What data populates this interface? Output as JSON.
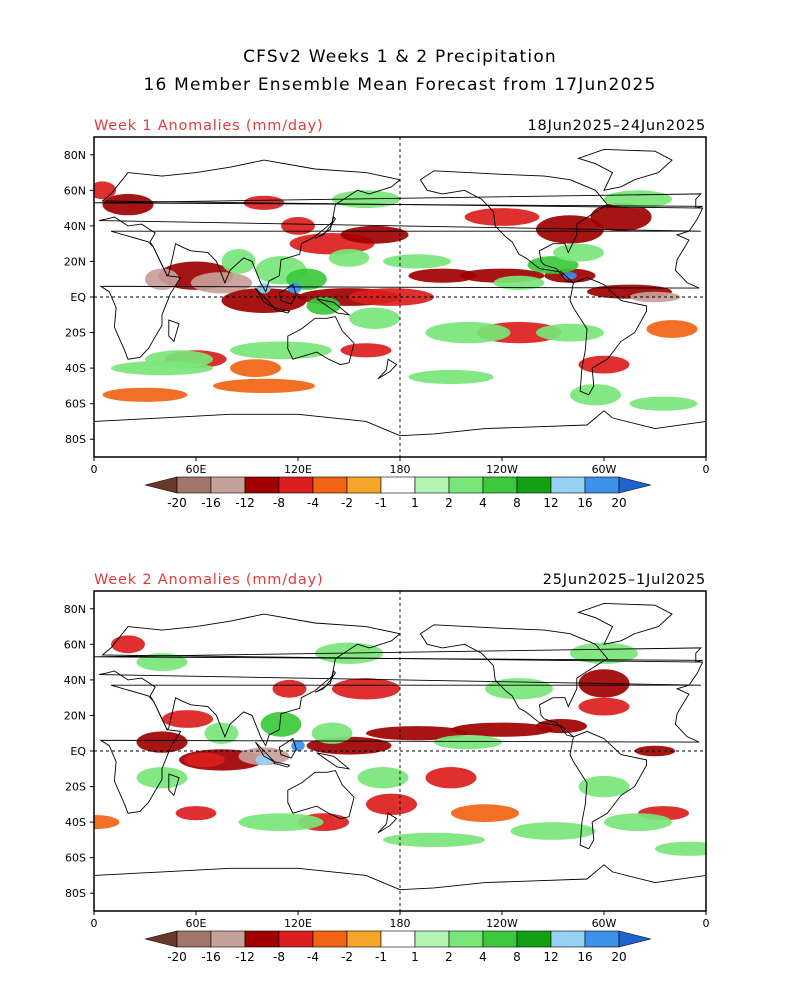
{
  "header": {
    "title_line1": "CFSv2 Weeks 1 & 2 Precipitation",
    "title_line2": "16 Member Ensemble Mean Forecast from 17Jun2025"
  },
  "colors": {
    "title_label": "#e03c3c",
    "dry": [
      "#6b3a2a",
      "#a0766a",
      "#c8a09a",
      "#a00000",
      "#dc1e1e",
      "#f06414",
      "#f5a628"
    ],
    "neutral": "#ffffff",
    "wet": [
      "#b4f5b4",
      "#78e678",
      "#3cc83c",
      "#14a014",
      "#96d2f5",
      "#3c91eb",
      "#1e64d2"
    ]
  },
  "legend": {
    "labels": [
      "-20",
      "-16",
      "-12",
      "-8",
      "-4",
      "-2",
      "-1",
      "1",
      "2",
      "4",
      "8",
      "12",
      "16",
      "20"
    ]
  },
  "chart_data": [
    {
      "type": "heatmap",
      "title": "Week 1 Anomalies (mm/day)",
      "date_range": "18Jun2025–24Jun2025",
      "variable": "precipitation anomaly",
      "units": "mm/day",
      "x_ticks": [
        "0",
        "60E",
        "120E",
        "180",
        "120W",
        "60W",
        "0"
      ],
      "y_ticks": [
        "80N",
        "60N",
        "40N",
        "20N",
        "EQ",
        "20S",
        "40S",
        "60S",
        "80S"
      ],
      "xlim": [
        0,
        360
      ],
      "ylim": [
        -90,
        90
      ],
      "color_levels": [
        -20,
        -16,
        -12,
        -8,
        -4,
        -2,
        -1,
        1,
        2,
        4,
        8,
        12,
        16,
        20
      ]
    },
    {
      "type": "heatmap",
      "title": "Week 2 Anomalies (mm/day)",
      "date_range": "25Jun2025–1Jul2025",
      "variable": "precipitation anomaly",
      "units": "mm/day",
      "x_ticks": [
        "0",
        "60E",
        "120E",
        "180",
        "120W",
        "60W",
        "0"
      ],
      "y_ticks": [
        "80N",
        "60N",
        "40N",
        "20N",
        "EQ",
        "20S",
        "40S",
        "60S",
        "80S"
      ],
      "xlim": [
        0,
        360
      ],
      "ylim": [
        -90,
        90
      ],
      "color_levels": [
        -20,
        -16,
        -12,
        -8,
        -4,
        -2,
        -1,
        1,
        2,
        4,
        8,
        12,
        16,
        20
      ]
    }
  ]
}
